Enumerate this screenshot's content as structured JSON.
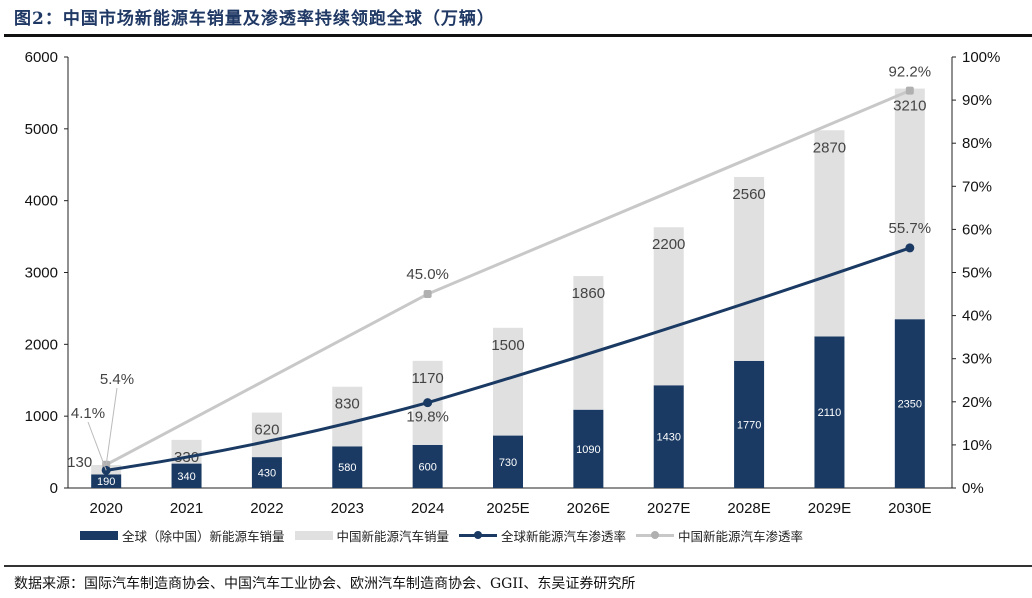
{
  "title": "图2：中国市场新能源车销量及渗透率持续领跑全球（万辆）",
  "source": "数据来源：国际汽车制造商协会、中国汽车工业协会、欧洲汽车制造商协会、GGII、东吴证券研究所",
  "chart_data": {
    "type": "bar",
    "stacked": true,
    "categories": [
      "2020",
      "2021",
      "2022",
      "2023",
      "2024",
      "2025E",
      "2026E",
      "2027E",
      "2028E",
      "2029E",
      "2030E"
    ],
    "y_left": {
      "lim": [
        0,
        6000
      ],
      "ticks": [
        "0",
        "1000",
        "2000",
        "3000",
        "4000",
        "5000",
        "6000"
      ]
    },
    "y_right": {
      "lim": [
        0,
        100
      ],
      "ticks": [
        "0%",
        "10%",
        "20%",
        "30%",
        "40%",
        "50%",
        "60%",
        "70%",
        "80%",
        "90%",
        "100%"
      ]
    },
    "grid": false,
    "legend_position": "bottom",
    "series": [
      {
        "name": "全球（除中国）新能源车销量",
        "type": "bar",
        "color": "#1a3a63",
        "values": [
          190,
          340,
          430,
          580,
          600,
          730,
          1090,
          1430,
          1770,
          2110,
          2350
        ]
      },
      {
        "name": "中国新能源汽车销量",
        "type": "bar",
        "color": "#e0e0e0",
        "values": [
          130,
          330,
          620,
          830,
          1170,
          1500,
          1860,
          2200,
          2560,
          2870,
          3210
        ]
      },
      {
        "name": "全球新能源汽车渗透率",
        "type": "line",
        "axis": "right",
        "color": "#1a3a63",
        "points": [
          {
            "x": "2020",
            "y": 4.1,
            "label": "4.1%"
          },
          {
            "x": "2024",
            "y": 19.8,
            "label": "19.8%"
          },
          {
            "x": "2030E",
            "y": 55.7,
            "label": "55.7%"
          }
        ]
      },
      {
        "name": "中国新能源汽车渗透率",
        "type": "line",
        "axis": "right",
        "color": "#c8c8c8",
        "points": [
          {
            "x": "2020",
            "y": 5.4,
            "label": "5.4%"
          },
          {
            "x": "2024",
            "y": 45.0,
            "label": "45.0%"
          },
          {
            "x": "2030E",
            "y": 92.2,
            "label": "92.2%"
          }
        ]
      }
    ]
  }
}
